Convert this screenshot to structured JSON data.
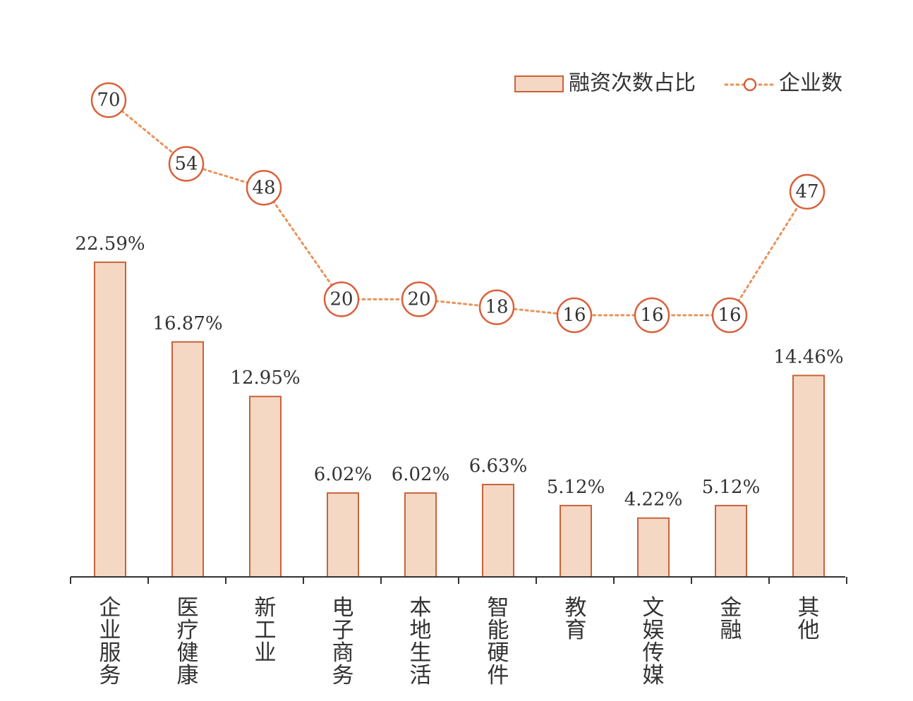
{
  "chart_data": {
    "type": "bar",
    "categories": [
      "企业服务",
      "医疗健康",
      "新工业",
      "电子商务",
      "本地生活",
      "智能硬件",
      "教育",
      "文娱传媒",
      "金融",
      "其他"
    ],
    "series": [
      {
        "name": "融资次数占比",
        "type": "bar",
        "values": [
          22.59,
          16.87,
          12.95,
          6.02,
          6.02,
          6.63,
          5.12,
          4.22,
          5.12,
          14.46
        ],
        "labels": [
          "22.59%",
          "16.87%",
          "12.95%",
          "6.02%",
          "6.02%",
          "6.63%",
          "5.12%",
          "4.22%",
          "5.12%",
          "14.46%"
        ]
      },
      {
        "name": "企业数",
        "type": "line",
        "values": [
          70,
          54,
          48,
          20,
          20,
          18,
          16,
          16,
          16,
          47
        ],
        "labels": [
          "70",
          "54",
          "48",
          "20",
          "20",
          "18",
          "16",
          "16",
          "16",
          "47"
        ]
      }
    ],
    "legend_position": "top-right",
    "grid": false,
    "colors": {
      "bar_fill": "#f5d8c4",
      "bar_stroke": "#c9623a",
      "line": "#e8935a",
      "marker_stroke": "#d9603c"
    }
  }
}
